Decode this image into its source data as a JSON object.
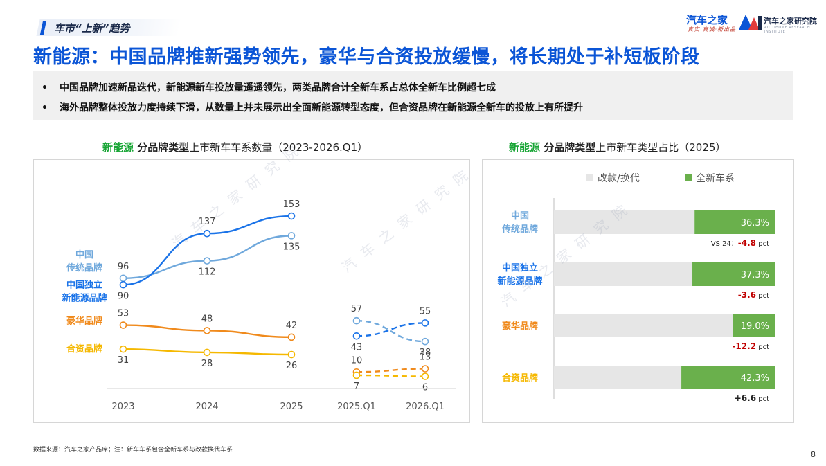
{
  "section": "车市“上新”趋势",
  "logos": {
    "autohome": "汽车之家",
    "autohome_tagline": "真实·真诚·新出品",
    "institute": "汽车之家研究院",
    "institute_en": "AUTOHOME RESEARCH INSTITUTE"
  },
  "headline": "新能源：中国品牌推新强势领先，豪华与合资投放缓慢，将长期处于补短板阶段",
  "bullets": [
    "中国品牌加速新品迭代，新能源新车投放量遥遥领先，两类品牌合计全新车系占总体全新车比例超七成",
    "海外品牌整体投放力度持续下滑，从数量上并未展示出全面新能源转型态度，但合资品牌在新能源全新车的投放上有所提升"
  ],
  "bullet_marker": "•",
  "watermark": "汽车之家研究院",
  "colors": {
    "accent_blue": "#0b55d6",
    "green": "#18a535",
    "chinese_traditional": "#6fa8dc",
    "chinese_independent": "#1a73e8",
    "luxury": "#f08a1c",
    "joint_venture": "#f5b800",
    "bar_bg": "#e6e6e6",
    "bar_green": "#6ab04c",
    "negative_delta": "#c00000"
  },
  "chart_data": [
    {
      "type": "line",
      "title_parts": [
        "新能源",
        " 分品牌类型",
        "上市新车车系数量（2023-2026.Q1）"
      ],
      "categories": [
        "2023",
        "2024",
        "2025",
        "2025.Q1",
        "2026.Q1"
      ],
      "solid_range": [
        "2023",
        "2025"
      ],
      "dashed_range": [
        "2025.Q1",
        "2026.Q1"
      ],
      "series": [
        {
          "name": "中国传统品牌",
          "label_lines": [
            "中国",
            "传统品牌"
          ],
          "values": [
            96,
            112,
            135,
            57,
            38
          ],
          "color": "#6fa8dc"
        },
        {
          "name": "中国独立新能源品牌",
          "label_lines": [
            "中国独立",
            "新能源品牌"
          ],
          "values": [
            90,
            137,
            153,
            43,
            55
          ],
          "color": "#1a73e8"
        },
        {
          "name": "豪华品牌",
          "label_lines": [
            "豪华品牌"
          ],
          "values": [
            53,
            48,
            42,
            10,
            13
          ],
          "color": "#f08a1c"
        },
        {
          "name": "合资品牌",
          "label_lines": [
            "合资品牌"
          ],
          "values": [
            31,
            28,
            26,
            7,
            6
          ],
          "color": "#f5b800"
        }
      ]
    },
    {
      "type": "bar",
      "stacked": true,
      "horizontal": true,
      "percent": true,
      "title_parts": [
        "新能源",
        " 分品牌类型",
        "上市新车类型占比（2025）"
      ],
      "legend": [
        "改款/换代",
        "全新车系"
      ],
      "legend_placement": "top",
      "categories": [
        "中国传统品牌",
        "中国独立新能源品牌",
        "豪华品牌",
        "合资品牌"
      ],
      "category_lines": [
        [
          "中国",
          "传统品牌"
        ],
        [
          "中国独立",
          "新能源品牌"
        ],
        [
          "豪华品牌"
        ],
        [
          "合资品牌"
        ]
      ],
      "category_colors": [
        "#6fa8dc",
        "#1a73e8",
        "#f08a1c",
        "#f5b800"
      ],
      "series": [
        {
          "name": "改款/换代",
          "values": [
            63.7,
            62.7,
            81.0,
            57.7
          ],
          "color": "#e6e6e6"
        },
        {
          "name": "全新车系",
          "values": [
            36.3,
            37.3,
            19.0,
            42.3
          ],
          "labels": [
            "36.3%",
            "37.3%",
            "19.0%",
            "42.3%"
          ],
          "color": "#6ab04c"
        }
      ],
      "delta_prefix": "VS 24：",
      "deltas": [
        "-4.8",
        "-3.6",
        "-12.2",
        "+6.6"
      ],
      "delta_unit": "pct"
    }
  ],
  "footnote": "数据来源：汽车之家产品库；注：新车车系包含全新车系与改款换代车系",
  "page_number": "8"
}
